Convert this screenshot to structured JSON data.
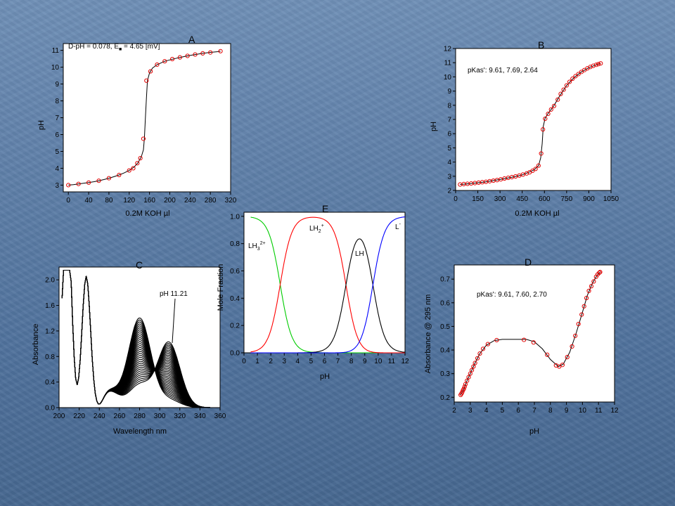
{
  "chart_data": [
    {
      "id": "A",
      "type": "line",
      "letter": "A",
      "xlabel": "0.2M KOH µl",
      "ylabel": "pH",
      "xlim": [
        -10,
        320
      ],
      "ylim": [
        2.6,
        11.4
      ],
      "xticks": [
        0,
        40,
        80,
        120,
        160,
        200,
        240,
        280,
        320
      ],
      "yticks": [
        3,
        4,
        5,
        6,
        7,
        8,
        9,
        10,
        11
      ],
      "annotation": {
        "prefix": "D-pH = 0.078, E",
        "subscript": "■",
        "suffix": " = 4.65 [mV]"
      },
      "series": [
        {
          "points": [
            [
              0,
              3.0
            ],
            [
              10,
              3.03
            ],
            [
              20,
              3.07
            ],
            [
              30,
              3.11
            ],
            [
              40,
              3.15
            ],
            [
              50,
              3.2
            ],
            [
              60,
              3.26
            ],
            [
              70,
              3.33
            ],
            [
              80,
              3.41
            ],
            [
              90,
              3.5
            ],
            [
              100,
              3.6
            ],
            [
              110,
              3.72
            ],
            [
              120,
              3.87
            ],
            [
              130,
              4.08
            ],
            [
              138,
              4.35
            ],
            [
              144,
              4.7
            ],
            [
              148,
              5.1
            ],
            [
              150,
              5.8
            ],
            [
              152,
              7.0
            ],
            [
              154,
              8.2
            ],
            [
              156,
              9.2
            ],
            [
              160,
              9.65
            ],
            [
              166,
              9.95
            ],
            [
              175,
              10.15
            ],
            [
              190,
              10.35
            ],
            [
              205,
              10.47
            ],
            [
              220,
              10.58
            ],
            [
              235,
              10.67
            ],
            [
              250,
              10.75
            ],
            [
              265,
              10.82
            ],
            [
              280,
              10.88
            ],
            [
              295,
              10.92
            ],
            [
              300,
              10.95
            ]
          ],
          "markers": [
            [
              0,
              3.0
            ],
            [
              20,
              3.07
            ],
            [
              40,
              3.15
            ],
            [
              60,
              3.26
            ],
            [
              80,
              3.41
            ],
            [
              100,
              3.6
            ],
            [
              120,
              3.87
            ],
            [
              128,
              4.0
            ],
            [
              136,
              4.3
            ],
            [
              142,
              4.6
            ],
            [
              148,
              5.75
            ],
            [
              154,
              9.2
            ],
            [
              162,
              9.75
            ],
            [
              175,
              10.15
            ],
            [
              190,
              10.35
            ],
            [
              205,
              10.48
            ],
            [
              220,
              10.58
            ],
            [
              235,
              10.67
            ],
            [
              250,
              10.75
            ],
            [
              265,
              10.82
            ],
            [
              280,
              10.87
            ],
            [
              300,
              10.95
            ]
          ]
        }
      ]
    },
    {
      "id": "B",
      "type": "line",
      "letter": "B",
      "xlabel": "0.2M KOH µl",
      "ylabel": "pH",
      "xlim": [
        0,
        1050
      ],
      "ylim": [
        2,
        12
      ],
      "xticks": [
        0,
        150,
        300,
        450,
        600,
        750,
        900,
        1050
      ],
      "yticks": [
        2,
        3,
        4,
        5,
        6,
        7,
        8,
        9,
        10,
        11,
        12
      ],
      "annotation": {
        "text": "pKas': 9.61, 7.69, 2.64"
      },
      "series": [
        {
          "points": [
            [
              30,
              2.42
            ],
            [
              100,
              2.48
            ],
            [
              200,
              2.6
            ],
            [
              300,
              2.77
            ],
            [
              400,
              2.97
            ],
            [
              450,
              3.1
            ],
            [
              500,
              3.3
            ],
            [
              530,
              3.45
            ],
            [
              560,
              3.75
            ],
            [
              575,
              4.3
            ],
            [
              585,
              5.3
            ],
            [
              592,
              6.5
            ],
            [
              605,
              7.1
            ],
            [
              630,
              7.5
            ],
            [
              660,
              7.9
            ],
            [
              700,
              8.6
            ],
            [
              750,
              9.4
            ],
            [
              800,
              9.95
            ],
            [
              850,
              10.35
            ],
            [
              900,
              10.65
            ],
            [
              950,
              10.85
            ],
            [
              980,
              10.95
            ]
          ],
          "markers": [
            [
              30,
              2.42
            ],
            [
              55,
              2.45
            ],
            [
              80,
              2.47
            ],
            [
              105,
              2.49
            ],
            [
              130,
              2.52
            ],
            [
              155,
              2.55
            ],
            [
              180,
              2.58
            ],
            [
              205,
              2.61
            ],
            [
              230,
              2.65
            ],
            [
              255,
              2.69
            ],
            [
              280,
              2.73
            ],
            [
              305,
              2.78
            ],
            [
              330,
              2.84
            ],
            [
              355,
              2.89
            ],
            [
              380,
              2.94
            ],
            [
              405,
              2.99
            ],
            [
              430,
              3.05
            ],
            [
              455,
              3.12
            ],
            [
              480,
              3.2
            ],
            [
              500,
              3.28
            ],
            [
              520,
              3.39
            ],
            [
              540,
              3.52
            ],
            [
              560,
              3.75
            ],
            [
              578,
              4.6
            ],
            [
              590,
              6.3
            ],
            [
              605,
              7.05
            ],
            [
              625,
              7.4
            ],
            [
              645,
              7.7
            ],
            [
              665,
              7.95
            ],
            [
              690,
              8.4
            ],
            [
              710,
              8.8
            ],
            [
              730,
              9.1
            ],
            [
              750,
              9.4
            ],
            [
              770,
              9.65
            ],
            [
              790,
              9.87
            ],
            [
              810,
              10.05
            ],
            [
              830,
              10.2
            ],
            [
              850,
              10.35
            ],
            [
              870,
              10.48
            ],
            [
              890,
              10.6
            ],
            [
              910,
              10.7
            ],
            [
              930,
              10.78
            ],
            [
              950,
              10.85
            ],
            [
              965,
              10.9
            ],
            [
              980,
              10.95
            ]
          ]
        }
      ]
    },
    {
      "id": "C",
      "type": "line",
      "letter": "C",
      "xlabel": "Wavelength nm",
      "ylabel": "Absorbance",
      "xlim": [
        200,
        360
      ],
      "ylim": [
        0,
        2.2
      ],
      "xticks": [
        200,
        220,
        240,
        260,
        280,
        300,
        320,
        340,
        360
      ],
      "yticks": [
        0.0,
        0.4,
        0.8,
        1.2,
        1.6,
        2.0
      ],
      "yticklabels": [
        "0.0",
        "0.4",
        "0.8",
        "1.2",
        "1.6",
        "2.0"
      ],
      "annotation": {
        "text": "pH 11.21"
      }
    },
    {
      "id": "D",
      "type": "line",
      "letter": "D",
      "xlabel": "pH",
      "ylabel": "Absorbance @ 295 nm",
      "xlim": [
        2,
        12
      ],
      "ylim": [
        0.18,
        0.76
      ],
      "xticks": [
        2,
        3,
        4,
        5,
        6,
        7,
        8,
        9,
        10,
        11,
        12
      ],
      "yticks": [
        0.2,
        0.3,
        0.4,
        0.5,
        0.6,
        0.7
      ],
      "annotation": {
        "text": "pKas': 9.61, 7.60, 2.70"
      },
      "series": [
        {
          "points": [
            [
              2.4,
              0.21
            ],
            [
              2.6,
              0.235
            ],
            [
              2.8,
              0.27
            ],
            [
              3.0,
              0.3
            ],
            [
              3.3,
              0.345
            ],
            [
              3.6,
              0.385
            ],
            [
              4.0,
              0.42
            ],
            [
              4.5,
              0.44
            ],
            [
              5.0,
              0.445
            ],
            [
              6.5,
              0.445
            ],
            [
              7.0,
              0.435
            ],
            [
              7.5,
              0.405
            ],
            [
              8.0,
              0.36
            ],
            [
              8.5,
              0.33
            ],
            [
              8.8,
              0.34
            ],
            [
              9.2,
              0.39
            ],
            [
              9.6,
              0.47
            ],
            [
              10.0,
              0.56
            ],
            [
              10.3,
              0.63
            ],
            [
              10.6,
              0.68
            ],
            [
              10.9,
              0.715
            ],
            [
              11.1,
              0.73
            ]
          ],
          "markers": [
            [
              2.4,
              0.21
            ],
            [
              2.45,
              0.215
            ],
            [
              2.5,
              0.222
            ],
            [
              2.55,
              0.23
            ],
            [
              2.6,
              0.236
            ],
            [
              2.65,
              0.245
            ],
            [
              2.7,
              0.255
            ],
            [
              2.8,
              0.27
            ],
            [
              2.9,
              0.285
            ],
            [
              3.0,
              0.3
            ],
            [
              3.1,
              0.315
            ],
            [
              3.2,
              0.33
            ],
            [
              3.3,
              0.345
            ],
            [
              3.45,
              0.365
            ],
            [
              3.6,
              0.385
            ],
            [
              3.8,
              0.405
            ],
            [
              4.1,
              0.425
            ],
            [
              4.65,
              0.442
            ],
            [
              6.35,
              0.443
            ],
            [
              6.95,
              0.432
            ],
            [
              7.8,
              0.38
            ],
            [
              8.35,
              0.335
            ],
            [
              8.55,
              0.33
            ],
            [
              8.75,
              0.337
            ],
            [
              9.05,
              0.37
            ],
            [
              9.35,
              0.415
            ],
            [
              9.55,
              0.46
            ],
            [
              9.75,
              0.51
            ],
            [
              9.95,
              0.55
            ],
            [
              10.1,
              0.585
            ],
            [
              10.25,
              0.62
            ],
            [
              10.4,
              0.65
            ],
            [
              10.55,
              0.67
            ],
            [
              10.7,
              0.69
            ],
            [
              10.85,
              0.71
            ],
            [
              10.95,
              0.72
            ],
            [
              11.05,
              0.727
            ],
            [
              11.1,
              0.73
            ]
          ]
        }
      ]
    },
    {
      "id": "E",
      "type": "line",
      "letter": "E",
      "xlabel": "pH",
      "ylabel": "Mole Fraction",
      "xlim": [
        0,
        12
      ],
      "ylim": [
        0,
        1.03
      ],
      "xticks": [
        0,
        1,
        2,
        3,
        4,
        5,
        6,
        7,
        8,
        9,
        10,
        11,
        12
      ],
      "yticks": [
        0.0,
        0.2,
        0.4,
        0.6,
        0.8,
        1.0
      ],
      "yticklabels": [
        "0.0",
        "0.2",
        "0.4",
        "0.6",
        "0.8",
        "1.0"
      ],
      "pKas": [
        2.7,
        7.6,
        9.61
      ],
      "series": [
        {
          "name_main": "LH",
          "name_sub": "3",
          "name_sup": "2+",
          "color": "#00cc00"
        },
        {
          "name_main": "LH",
          "name_sub": "2",
          "name_sup": "+",
          "color": "#ff0000"
        },
        {
          "name_main": "LH",
          "name_sub": "",
          "name_sup": "",
          "color": "#000000"
        },
        {
          "name_main": "L",
          "name_sub": "",
          "name_sup": "-",
          "color": "#0000ff"
        }
      ]
    }
  ]
}
